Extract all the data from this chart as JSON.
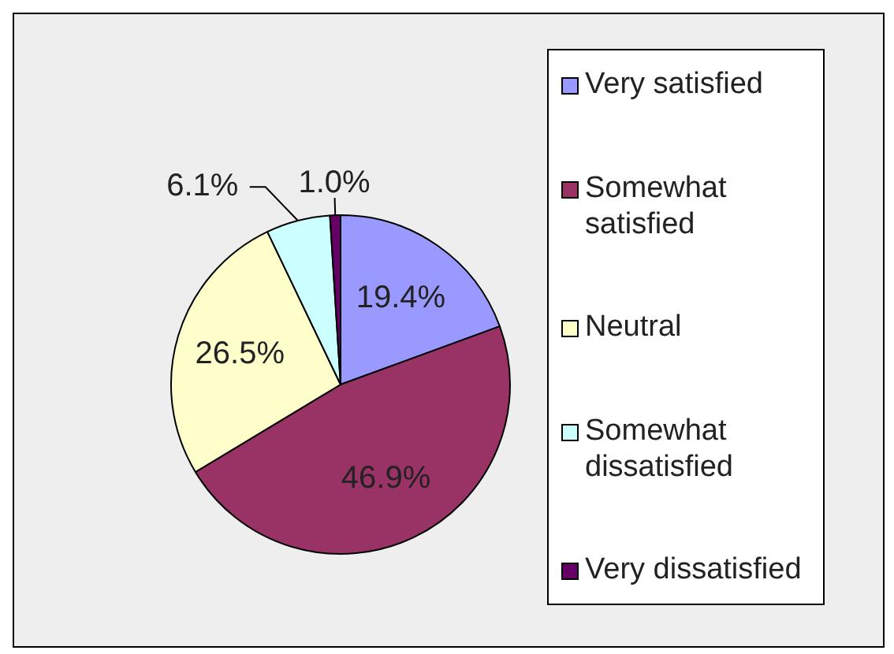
{
  "chart_data": {
    "type": "pie",
    "categories": [
      "Very satisfied",
      "Somewhat satisfied",
      "Neutral",
      "Somewhat dissatisfied",
      "Very dissatisfied"
    ],
    "values": [
      19.4,
      46.9,
      26.5,
      6.1,
      1.0
    ],
    "value_labels": [
      "19.4%",
      "46.9%",
      "26.5%",
      "6.1%",
      "1.0%"
    ],
    "colors": [
      "#9999ff",
      "#993366",
      "#ffffcc",
      "#ccffff",
      "#660066"
    ],
    "legend": "right"
  }
}
